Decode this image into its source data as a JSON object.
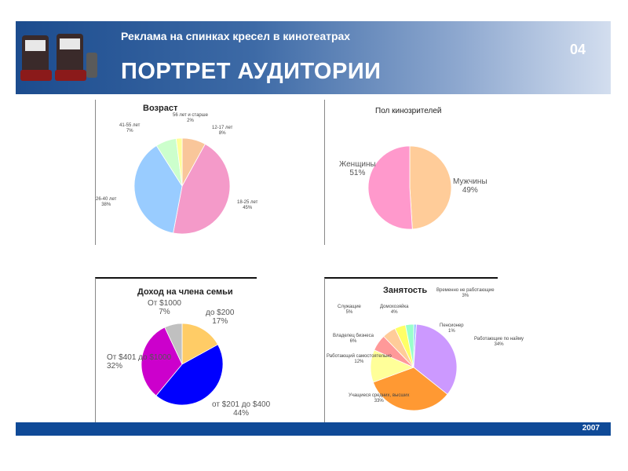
{
  "header": {
    "subtitle": "Реклама на спинках кресел в кинотеатрах",
    "title": "ПОРТРЕТ АУДИТОРИИ",
    "page_number": "04",
    "logo_icon": "cinema-seats-icon"
  },
  "footer": {
    "year": "2007"
  },
  "chart_data": [
    {
      "type": "pie",
      "title": "Возраст",
      "slices": [
        {
          "label": "12-17 лет",
          "value": 8,
          "pct": "8%",
          "color": "#f9c69a"
        },
        {
          "label": "18-25 лет",
          "value": 45,
          "pct": "45%",
          "color": "#f49ac9"
        },
        {
          "label": "26-40 лет",
          "value": 38,
          "pct": "38%",
          "color": "#99ccff"
        },
        {
          "label": "41-55 лет",
          "value": 7,
          "pct": "7%",
          "color": "#ccffcc"
        },
        {
          "label": "56 лет и старше",
          "value": 2,
          "pct": "2%",
          "color": "#ffff99"
        }
      ]
    },
    {
      "type": "pie",
      "title": "Пол кинозрителей",
      "slices": [
        {
          "label": "Мужчины",
          "value": 49,
          "pct": "49%",
          "color": "#ffcc99"
        },
        {
          "label": "Женщины",
          "value": 51,
          "pct": "51%",
          "color": "#ff99cc"
        }
      ]
    },
    {
      "type": "pie",
      "title": "Доход на члена семьи",
      "slices": [
        {
          "label": "до $200",
          "value": 17,
          "pct": "17%",
          "color": "#ffcc66"
        },
        {
          "label": "от $201 до $400",
          "value": 44,
          "pct": "44%",
          "color": "#0000ff"
        },
        {
          "label": "От $401 до $1000",
          "value": 32,
          "pct": "32%",
          "color": "#cc00cc"
        },
        {
          "label": "От $1000",
          "value": 7,
          "pct": "7%",
          "color": "#c0c0c0"
        }
      ]
    },
    {
      "type": "pie",
      "title": "Занятость",
      "slices": [
        {
          "label": "Пенсионер",
          "value": 1,
          "pct": "1%",
          "color": "#99ccff"
        },
        {
          "label": "Работающие по найму",
          "value": 34,
          "pct": "34%",
          "color": "#cc99ff"
        },
        {
          "label": "Учащиеся средних, высших",
          "value": 33,
          "pct": "33%",
          "color": "#ff9933"
        },
        {
          "label": "Работающий самостоятельно",
          "value": 12,
          "pct": "12%",
          "color": "#ffff99"
        },
        {
          "label": "Владелец бизнеса",
          "value": 6,
          "pct": "6%",
          "color": "#ff9999"
        },
        {
          "label": "Служащие",
          "value": 5,
          "pct": "5%",
          "color": "#ffcc99"
        },
        {
          "label": "Домохозяйка",
          "value": 4,
          "pct": "4%",
          "color": "#ffff66"
        },
        {
          "label": "Временно не работающие",
          "value": 3,
          "pct": "3%",
          "color": "#99ffcc"
        }
      ]
    }
  ]
}
